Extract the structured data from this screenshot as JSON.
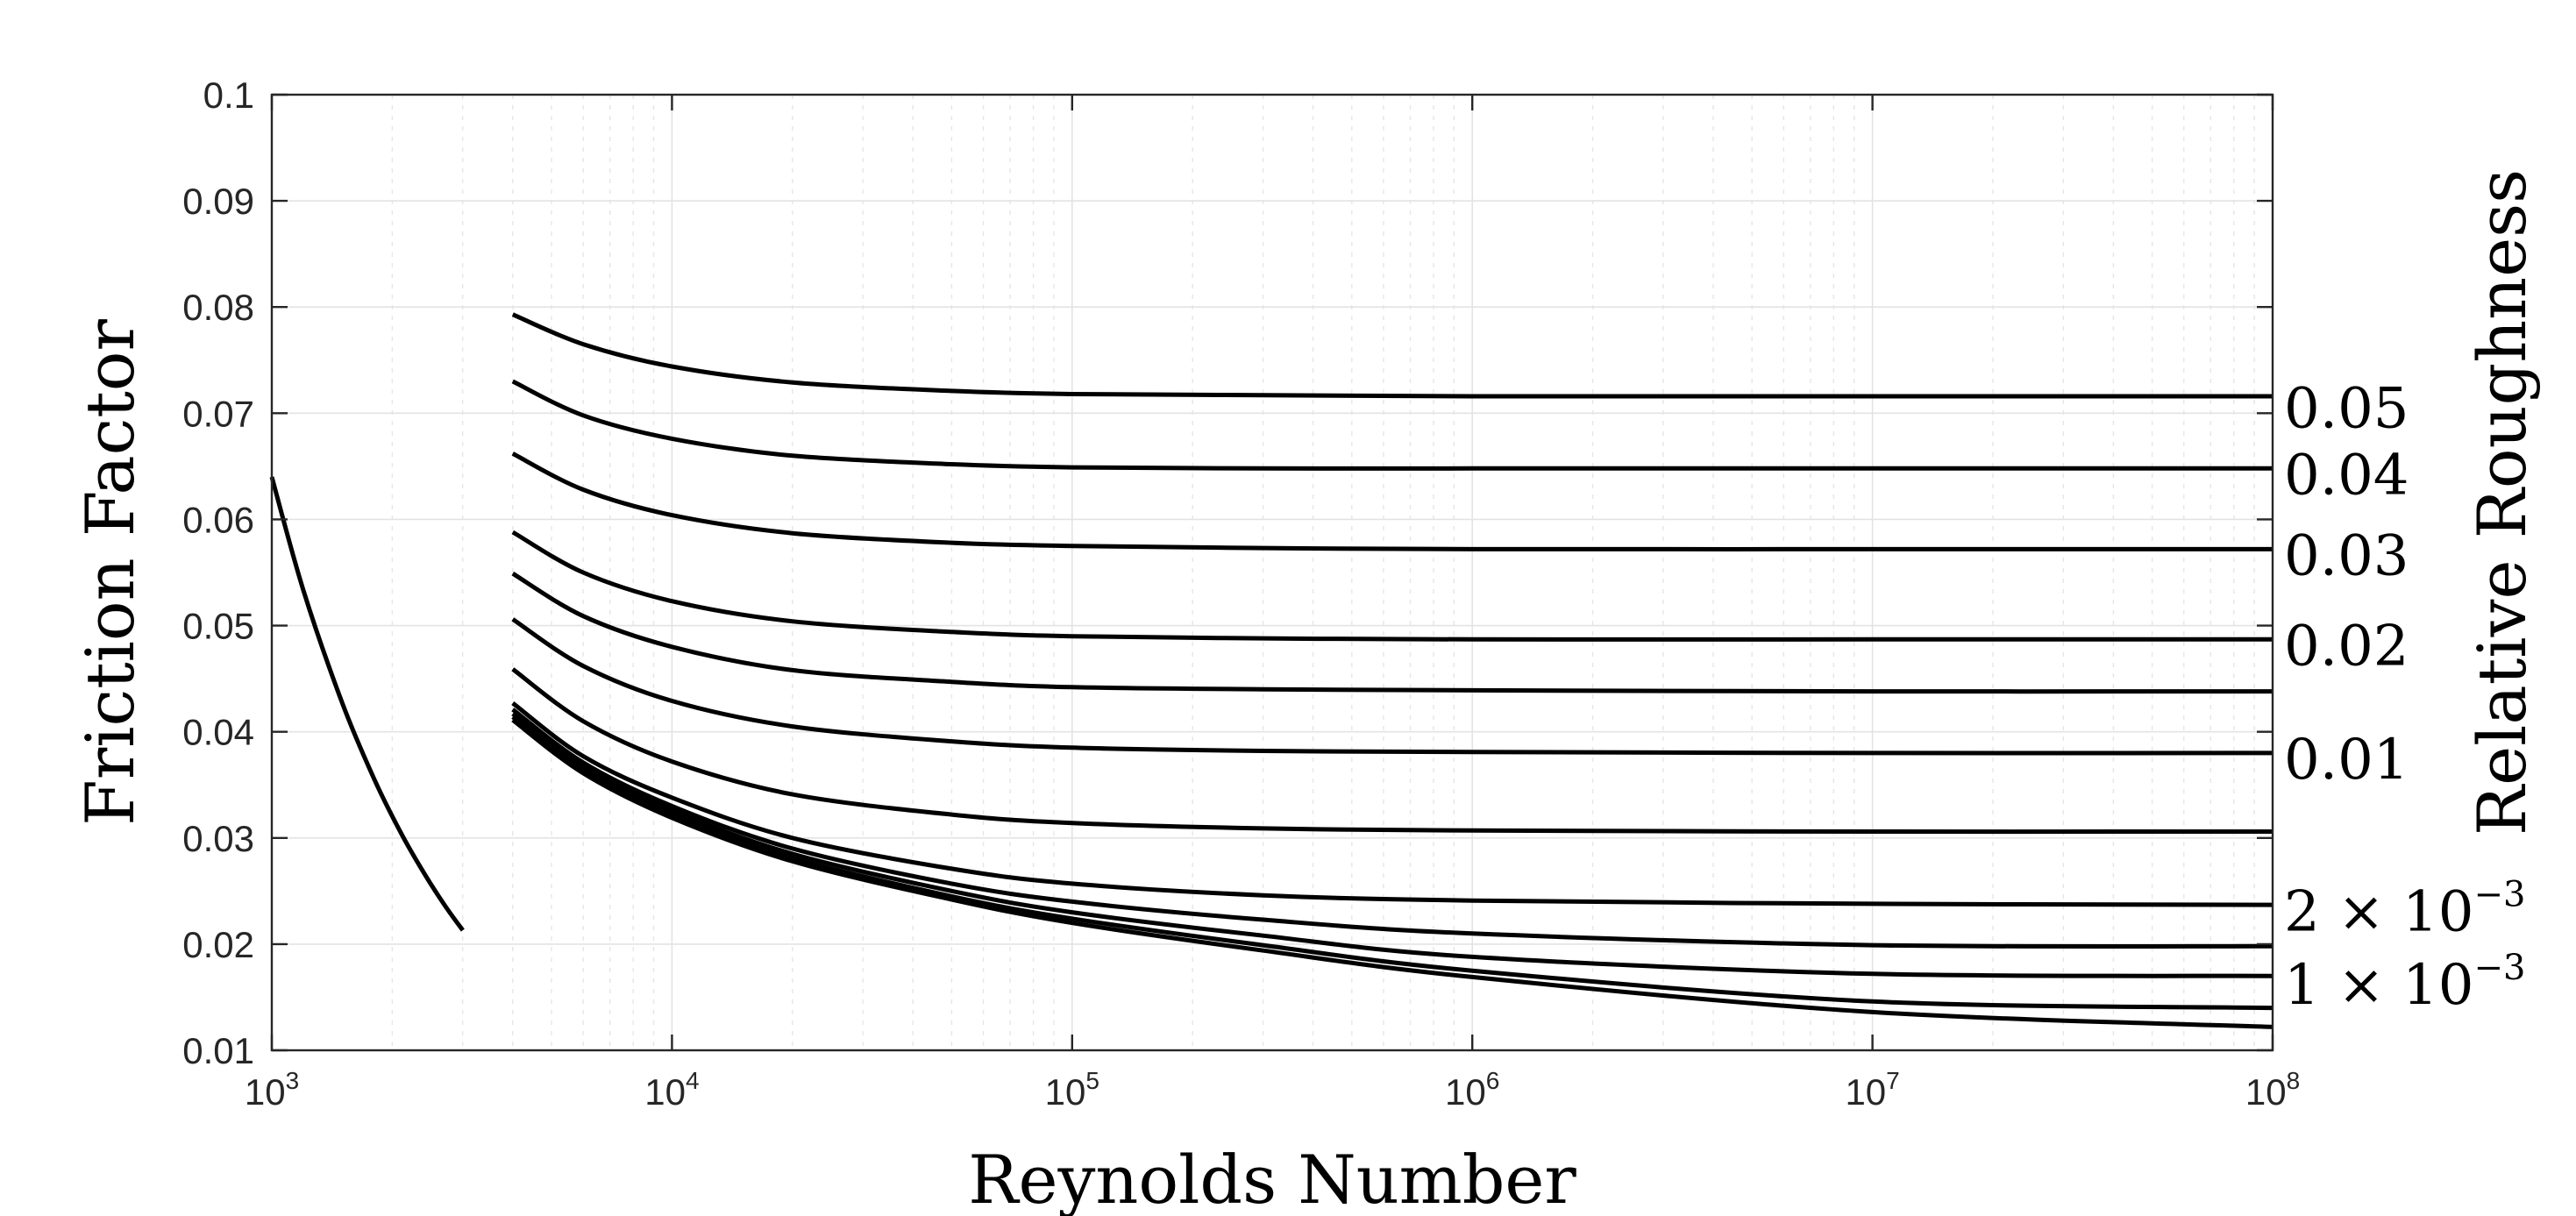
{
  "chart_data": {
    "type": "line",
    "title": "",
    "xlabel": "Reynolds Number",
    "ylabel": "Friction Factor",
    "right_label": "Relative Roughness",
    "xscale": "log",
    "xlim": [
      1000,
      100000000
    ],
    "ylim": [
      0.01,
      0.1
    ],
    "grid": true,
    "minor_grid": true,
    "x_ticks": [
      {
        "base": "10",
        "exp": "3"
      },
      {
        "base": "10",
        "exp": "4"
      },
      {
        "base": "10",
        "exp": "5"
      },
      {
        "base": "10",
        "exp": "6"
      },
      {
        "base": "10",
        "exp": "7"
      },
      {
        "base": "10",
        "exp": "8"
      }
    ],
    "y_ticks": [
      "0.01",
      "0.02",
      "0.03",
      "0.04",
      "0.05",
      "0.06",
      "0.07",
      "0.08",
      "0.09",
      "0.1"
    ],
    "laminar": {
      "x": [
        1000,
        1200,
        1500,
        1800,
        2100,
        2400,
        2700,
        3000
      ],
      "y": [
        0.064,
        0.0533,
        0.0427,
        0.0356,
        0.0305,
        0.0267,
        0.0237,
        0.0213
      ]
    },
    "turbulent_x": [
      4000,
      6000,
      10000,
      20000,
      50000,
      100000,
      300000,
      1000000,
      10000000,
      100000000
    ],
    "turbulent_series": [
      {
        "y": [
          0.0793,
          0.0765,
          0.0744,
          0.0729,
          0.0721,
          0.0718,
          0.0717,
          0.0716,
          0.0716,
          0.0716
        ]
      },
      {
        "y": [
          0.073,
          0.0698,
          0.0676,
          0.066,
          0.0652,
          0.0649,
          0.0648,
          0.0648,
          0.0648,
          0.0648
        ]
      },
      {
        "y": [
          0.0662,
          0.0628,
          0.0604,
          0.0587,
          0.0578,
          0.0575,
          0.0573,
          0.0572,
          0.0572,
          0.0572
        ]
      },
      {
        "y": [
          0.0588,
          0.055,
          0.0523,
          0.0504,
          0.0494,
          0.049,
          0.0488,
          0.0487,
          0.0487,
          0.0487
        ]
      },
      {
        "y": [
          0.0549,
          0.0509,
          0.048,
          0.0458,
          0.0447,
          0.0442,
          0.044,
          0.0439,
          0.0438,
          0.0438
        ]
      },
      {
        "y": [
          0.0506,
          0.0462,
          0.0429,
          0.0405,
          0.0391,
          0.0385,
          0.0382,
          0.0381,
          0.038,
          0.038
        ]
      },
      {
        "y": [
          0.0459,
          0.041,
          0.0372,
          0.0341,
          0.0322,
          0.0314,
          0.0309,
          0.0307,
          0.0306,
          0.0306
        ]
      },
      {
        "y": [
          0.0427,
          0.0377,
          0.0338,
          0.03,
          0.0271,
          0.0257,
          0.0246,
          0.0241,
          0.0238,
          0.0237
        ]
      },
      {
        "y": [
          0.0421,
          0.0371,
          0.033,
          0.029,
          0.0257,
          0.024,
          0.0223,
          0.021,
          0.0199,
          0.0198
        ]
      },
      {
        "y": [
          0.0417,
          0.0367,
          0.0326,
          0.0285,
          0.025,
          0.023,
          0.0208,
          0.0188,
          0.0172,
          0.017
        ]
      },
      {
        "y": [
          0.0414,
          0.0364,
          0.0322,
          0.0281,
          0.0245,
          0.0224,
          0.0199,
          0.0175,
          0.0146,
          0.014
        ]
      },
      {
        "y": [
          0.0411,
          0.0361,
          0.0319,
          0.0278,
          0.0242,
          0.022,
          0.0194,
          0.0169,
          0.0136,
          0.0122
        ]
      }
    ],
    "roughness_labels": [
      {
        "text": "0.05",
        "y": 0.0705
      },
      {
        "text": "0.04",
        "y": 0.0642
      },
      {
        "text": "0.03",
        "y": 0.0566
      },
      {
        "text": "0.02",
        "y": 0.0481
      },
      {
        "text": "0.01",
        "y": 0.0374
      },
      {
        "mant": "2 × 10",
        "exp": "−3",
        "y": 0.0231
      },
      {
        "mant": "1 × 10",
        "exp": "−3",
        "y": 0.0162
      }
    ]
  }
}
